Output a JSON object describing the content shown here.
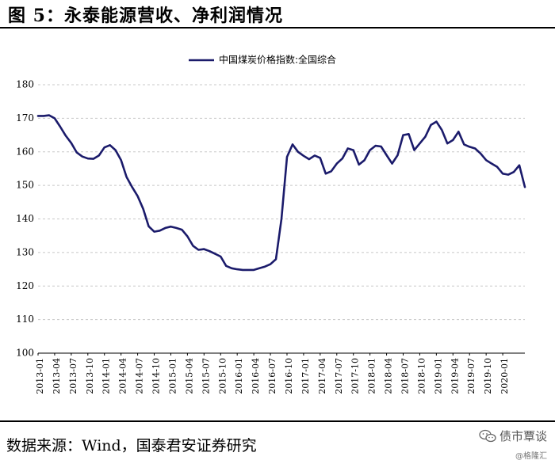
{
  "figure": {
    "title": "图 5：永泰能源营收、净利润情况",
    "source": "数据来源：Wind，国泰君安证券研究"
  },
  "watermark": {
    "name": "债市覃谈",
    "sub": "@格隆汇",
    "icon": "wechat-icon"
  },
  "chart_data": {
    "type": "line",
    "legend_position": "top-center",
    "grid": true,
    "ylim": [
      100,
      180
    ],
    "yticks": [
      100,
      110,
      120,
      130,
      140,
      150,
      160,
      170,
      180
    ],
    "xlim": [
      "2013-01",
      "2020-05"
    ],
    "xticks": [
      "2013-01",
      "2013-04",
      "2013-07",
      "2013-10",
      "2014-01",
      "2014-04",
      "2014-07",
      "2014-10",
      "2015-01",
      "2015-04",
      "2015-07",
      "2015-10",
      "2016-01",
      "2016-04",
      "2016-07",
      "2016-10",
      "2017-01",
      "2017-04",
      "2017-07",
      "2017-10",
      "2018-01",
      "2018-04",
      "2018-07",
      "2018-10",
      "2019-01",
      "2019-04",
      "2019-07",
      "2019-10",
      "2020-01"
    ],
    "series": [
      {
        "name": "中国煤炭价格指数:全国综合",
        "color": "#1b1b6b",
        "points": [
          [
            "2013-01",
            170.7
          ],
          [
            "2013-02",
            170.7
          ],
          [
            "2013-03",
            170.9
          ],
          [
            "2013-04",
            170.0
          ],
          [
            "2013-05",
            167.5
          ],
          [
            "2013-06",
            164.8
          ],
          [
            "2013-07",
            162.6
          ],
          [
            "2013-08",
            159.8
          ],
          [
            "2013-09",
            158.6
          ],
          [
            "2013-10",
            158.0
          ],
          [
            "2013-11",
            157.9
          ],
          [
            "2013-12",
            158.9
          ],
          [
            "2014-01",
            161.3
          ],
          [
            "2014-02",
            162.0
          ],
          [
            "2014-03",
            160.5
          ],
          [
            "2014-04",
            157.5
          ],
          [
            "2014-05",
            152.5
          ],
          [
            "2014-06",
            149.5
          ],
          [
            "2014-07",
            146.8
          ],
          [
            "2014-08",
            143.0
          ],
          [
            "2014-09",
            137.8
          ],
          [
            "2014-10",
            136.2
          ],
          [
            "2014-11",
            136.5
          ],
          [
            "2014-12",
            137.3
          ],
          [
            "2015-01",
            137.7
          ],
          [
            "2015-02",
            137.3
          ],
          [
            "2015-03",
            136.8
          ],
          [
            "2015-04",
            134.8
          ],
          [
            "2015-05",
            132.0
          ],
          [
            "2015-06",
            130.8
          ],
          [
            "2015-07",
            131.0
          ],
          [
            "2015-08",
            130.4
          ],
          [
            "2015-09",
            129.6
          ],
          [
            "2015-10",
            128.8
          ],
          [
            "2015-11",
            126.0
          ],
          [
            "2015-12",
            125.3
          ],
          [
            "2016-01",
            125.0
          ],
          [
            "2016-02",
            124.8
          ],
          [
            "2016-03",
            124.8
          ],
          [
            "2016-04",
            124.8
          ],
          [
            "2016-05",
            125.3
          ],
          [
            "2016-06",
            125.8
          ],
          [
            "2016-07",
            126.5
          ],
          [
            "2016-08",
            128.0
          ],
          [
            "2016-09",
            140.0
          ],
          [
            "2016-10",
            158.5
          ],
          [
            "2016-11",
            162.2
          ],
          [
            "2016-12",
            160.0
          ],
          [
            "2017-01",
            158.8
          ],
          [
            "2017-02",
            157.8
          ],
          [
            "2017-03",
            158.9
          ],
          [
            "2017-04",
            158.2
          ],
          [
            "2017-05",
            153.5
          ],
          [
            "2017-06",
            154.2
          ],
          [
            "2017-07",
            156.5
          ],
          [
            "2017-08",
            158.0
          ],
          [
            "2017-09",
            161.0
          ],
          [
            "2017-10",
            160.5
          ],
          [
            "2017-11",
            156.2
          ],
          [
            "2017-12",
            157.5
          ],
          [
            "2018-01",
            160.5
          ],
          [
            "2018-02",
            161.8
          ],
          [
            "2018-03",
            161.6
          ],
          [
            "2018-04",
            159.0
          ],
          [
            "2018-05",
            156.5
          ],
          [
            "2018-06",
            159.0
          ],
          [
            "2018-07",
            165.0
          ],
          [
            "2018-08",
            165.3
          ],
          [
            "2018-09",
            160.5
          ],
          [
            "2018-10",
            162.5
          ],
          [
            "2018-11",
            164.5
          ],
          [
            "2018-12",
            168.0
          ],
          [
            "2019-01",
            169.0
          ],
          [
            "2019-02",
            166.5
          ],
          [
            "2019-03",
            162.5
          ],
          [
            "2019-04",
            163.5
          ],
          [
            "2019-05",
            166.0
          ],
          [
            "2019-06",
            162.2
          ],
          [
            "2019-07",
            161.5
          ],
          [
            "2019-08",
            161.0
          ],
          [
            "2019-09",
            159.5
          ],
          [
            "2019-10",
            157.5
          ],
          [
            "2019-11",
            156.5
          ],
          [
            "2019-12",
            155.5
          ],
          [
            "2020-01",
            153.5
          ],
          [
            "2020-02",
            153.2
          ],
          [
            "2020-03",
            154.0
          ],
          [
            "2020-04",
            156.0
          ],
          [
            "2020-05",
            149.5
          ]
        ]
      }
    ]
  }
}
